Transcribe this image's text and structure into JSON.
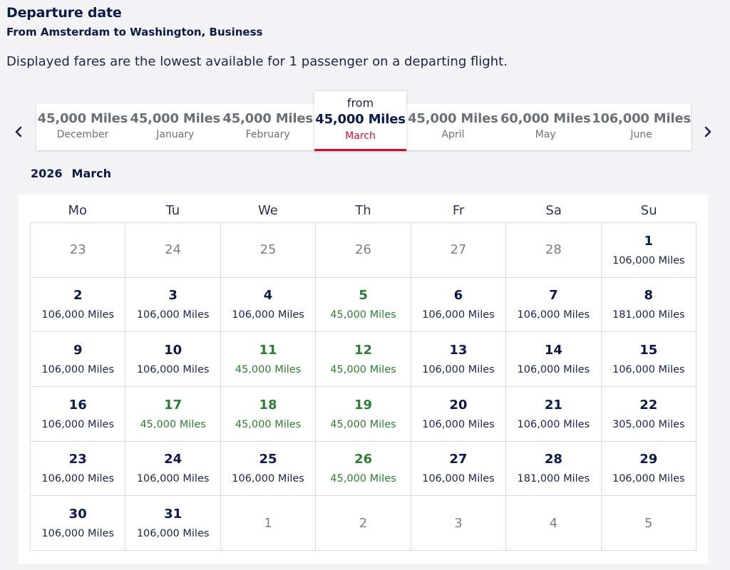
{
  "header": {
    "title": "Departure date",
    "subtitle": "From Amsterdam to Washington, Business",
    "note": "Displayed fares are the lowest available for 1 passenger on a departing flight."
  },
  "icons": {
    "prev": "chevron-left-icon",
    "next": "chevron-right-icon"
  },
  "colors": {
    "navy": "#0b1a47",
    "accent_red": "#c8102e",
    "low_fare_green": "#2e7d32"
  },
  "months": [
    {
      "miles": "45,000 Miles",
      "name": "December"
    },
    {
      "miles": "45,000 Miles",
      "name": "January"
    },
    {
      "miles": "45,000 Miles",
      "name": "February"
    },
    {
      "from": "from",
      "miles": "45,000 Miles",
      "name": "March",
      "selected": true
    },
    {
      "miles": "45,000 Miles",
      "name": "April"
    },
    {
      "miles": "60,000 Miles",
      "name": "May"
    },
    {
      "miles": "106,000 Miles",
      "name": "June"
    }
  ],
  "calendar": {
    "year": "2026",
    "month": "March",
    "weekdays": [
      "Mo",
      "Tu",
      "We",
      "Th",
      "Fr",
      "Sa",
      "Su"
    ],
    "days": [
      {
        "day": "23",
        "out": true
      },
      {
        "day": "24",
        "out": true
      },
      {
        "day": "25",
        "out": true
      },
      {
        "day": "26",
        "out": true
      },
      {
        "day": "27",
        "out": true
      },
      {
        "day": "28",
        "out": true
      },
      {
        "day": "1",
        "price": "106,000 Miles"
      },
      {
        "day": "2",
        "price": "106,000 Miles"
      },
      {
        "day": "3",
        "price": "106,000 Miles"
      },
      {
        "day": "4",
        "price": "106,000 Miles"
      },
      {
        "day": "5",
        "price": "45,000 Miles",
        "low": true
      },
      {
        "day": "6",
        "price": "106,000 Miles"
      },
      {
        "day": "7",
        "price": "106,000 Miles"
      },
      {
        "day": "8",
        "price": "181,000 Miles"
      },
      {
        "day": "9",
        "price": "106,000 Miles"
      },
      {
        "day": "10",
        "price": "106,000 Miles"
      },
      {
        "day": "11",
        "price": "45,000 Miles",
        "low": true
      },
      {
        "day": "12",
        "price": "45,000 Miles",
        "low": true
      },
      {
        "day": "13",
        "price": "106,000 Miles"
      },
      {
        "day": "14",
        "price": "106,000 Miles"
      },
      {
        "day": "15",
        "price": "106,000 Miles"
      },
      {
        "day": "16",
        "price": "106,000 Miles"
      },
      {
        "day": "17",
        "price": "45,000 Miles",
        "low": true
      },
      {
        "day": "18",
        "price": "45,000 Miles",
        "low": true
      },
      {
        "day": "19",
        "price": "45,000 Miles",
        "low": true
      },
      {
        "day": "20",
        "price": "106,000 Miles"
      },
      {
        "day": "21",
        "price": "106,000 Miles"
      },
      {
        "day": "22",
        "price": "305,000 Miles"
      },
      {
        "day": "23",
        "price": "106,000 Miles"
      },
      {
        "day": "24",
        "price": "106,000 Miles"
      },
      {
        "day": "25",
        "price": "106,000 Miles"
      },
      {
        "day": "26",
        "price": "45,000 Miles",
        "low": true
      },
      {
        "day": "27",
        "price": "106,000 Miles"
      },
      {
        "day": "28",
        "price": "181,000 Miles"
      },
      {
        "day": "29",
        "price": "106,000 Miles"
      },
      {
        "day": "30",
        "price": "106,000 Miles"
      },
      {
        "day": "31",
        "price": "106,000 Miles"
      },
      {
        "day": "1",
        "out": true
      },
      {
        "day": "2",
        "out": true
      },
      {
        "day": "3",
        "out": true
      },
      {
        "day": "4",
        "out": true
      },
      {
        "day": "5",
        "out": true
      }
    ]
  }
}
